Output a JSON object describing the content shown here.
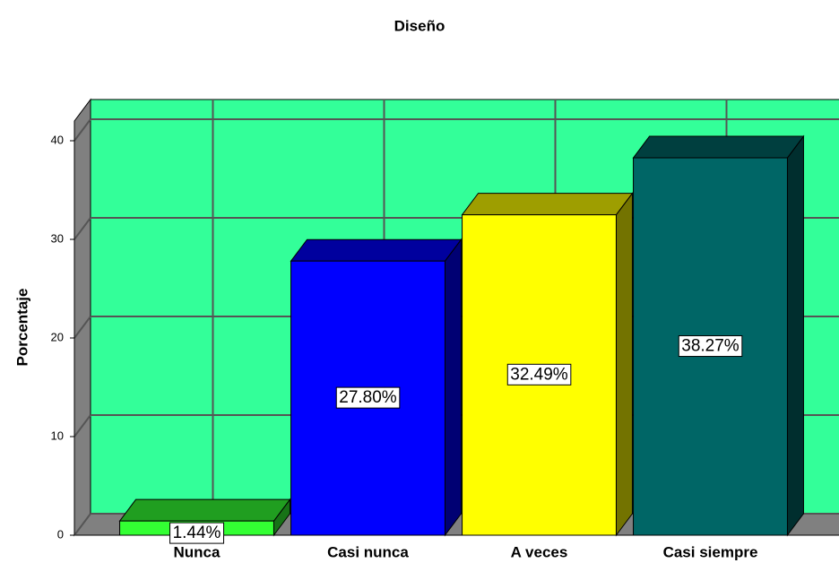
{
  "chart_data": {
    "type": "bar3d",
    "title": "Diseño",
    "y_label": "Porcentaje",
    "categories": [
      "Nunca",
      "Casi nunca",
      "A veces",
      "Casi siempre"
    ],
    "values": [
      1.44,
      27.8,
      32.49,
      38.27
    ],
    "value_labels": [
      "1.44%",
      "27.80%",
      "32.49%",
      "38.27%"
    ],
    "colors": [
      "#33ff33",
      "#0000ff",
      "#ffff00",
      "#006666"
    ],
    "ylim": [
      0,
      42
    ],
    "yticks": [
      0,
      10,
      20,
      30,
      40
    ],
    "grid": true,
    "wall_color": "#33ff99"
  }
}
